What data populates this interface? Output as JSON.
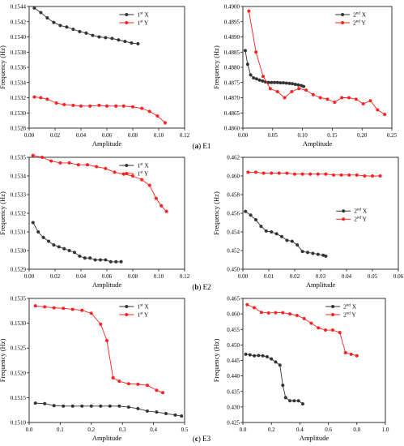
{
  "figure": {
    "captions": [
      {
        "letter": "a",
        "name": "E1"
      },
      {
        "letter": "b",
        "name": "E2"
      },
      {
        "letter": "c",
        "name": "E3"
      }
    ]
  },
  "chart_data": [
    {
      "id": "e1-1st",
      "type": "line",
      "xlabel": "Amplitude",
      "ylabel": "Frequency (Hz)",
      "xlim": [
        0,
        0.12
      ],
      "ylim": [
        0.1528,
        0.1544
      ],
      "xticks": [
        "0.00",
        "0.02",
        "0.04",
        "0.06",
        "0.08",
        "0.10",
        "0.12"
      ],
      "yticks": [
        "0.1528",
        "0.1530",
        "0.1532",
        "0.1534",
        "0.1536",
        "0.1538",
        "0.1540",
        "0.1542",
        "0.1544"
      ],
      "legend_position": "top-right",
      "series": [
        {
          "name": "1st X",
          "base": "1",
          "sup": "st",
          "axis": " X",
          "color": "#333333",
          "x": [
            0.004,
            0.009,
            0.014,
            0.019,
            0.024,
            0.029,
            0.034,
            0.039,
            0.044,
            0.049,
            0.054,
            0.059,
            0.064,
            0.069,
            0.074,
            0.079,
            0.084
          ],
          "y": [
            0.15438,
            0.15432,
            0.15425,
            0.15419,
            0.15415,
            0.15413,
            0.1541,
            0.15407,
            0.15405,
            0.15402,
            0.154,
            0.15399,
            0.15398,
            0.15396,
            0.15394,
            0.15392,
            0.15391
          ]
        },
        {
          "name": "1st Y",
          "base": "1",
          "sup": "st",
          "axis": " Y",
          "color": "#ff2020",
          "x": [
            0.004,
            0.009,
            0.014,
            0.021,
            0.027,
            0.034,
            0.04,
            0.047,
            0.054,
            0.06,
            0.067,
            0.073,
            0.08,
            0.087,
            0.093,
            0.099,
            0.105
          ],
          "y": [
            0.15321,
            0.1532,
            0.15318,
            0.15313,
            0.15311,
            0.1531,
            0.15309,
            0.15309,
            0.1531,
            0.15309,
            0.15309,
            0.15309,
            0.15308,
            0.15306,
            0.15302,
            0.15296,
            0.15287
          ]
        }
      ]
    },
    {
      "id": "e1-2nd",
      "type": "line",
      "xlabel": "Amplitude",
      "ylabel": "Frequency (Hz)",
      "xlim": [
        0,
        0.25
      ],
      "ylim": [
        0.486,
        0.49
      ],
      "xticks": [
        "0.00",
        "0.05",
        "0.10",
        "0.15",
        "0.20",
        "0.25"
      ],
      "yticks": [
        "0.4860",
        "0.4865",
        "0.4870",
        "0.4875",
        "0.4880",
        "0.4885",
        "0.4890",
        "0.4895",
        "0.4900"
      ],
      "legend_position": "top-right",
      "series": [
        {
          "name": "2nd X",
          "base": "2",
          "sup": "nd",
          "axis": " X",
          "color": "#333333",
          "x": [
            0.004,
            0.008,
            0.013,
            0.018,
            0.023,
            0.028,
            0.033,
            0.038,
            0.043,
            0.048,
            0.053,
            0.058,
            0.063,
            0.068,
            0.073,
            0.078,
            0.083,
            0.088,
            0.093,
            0.098,
            0.102
          ],
          "y": [
            0.48855,
            0.4881,
            0.48775,
            0.48765,
            0.48762,
            0.48758,
            0.48755,
            0.48752,
            0.4875,
            0.4875,
            0.4875,
            0.4875,
            0.48749,
            0.48749,
            0.48748,
            0.48747,
            0.48746,
            0.48744,
            0.48742,
            0.4874,
            0.48737
          ]
        },
        {
          "name": "2nd Y",
          "base": "2",
          "sup": "nd",
          "axis": " Y",
          "color": "#ff2020",
          "x": [
            0.01,
            0.022,
            0.034,
            0.046,
            0.058,
            0.07,
            0.082,
            0.094,
            0.106,
            0.118,
            0.13,
            0.142,
            0.154,
            0.166,
            0.178,
            0.19,
            0.202,
            0.214,
            0.226,
            0.238
          ],
          "y": [
            0.48985,
            0.4885,
            0.4877,
            0.4873,
            0.4872,
            0.487,
            0.4872,
            0.4873,
            0.48725,
            0.4871,
            0.487,
            0.48695,
            0.48685,
            0.487,
            0.487,
            0.48695,
            0.4868,
            0.4869,
            0.4866,
            0.48645
          ]
        }
      ]
    },
    {
      "id": "e2-1st",
      "type": "line",
      "xlabel": "Amplitude",
      "ylabel": "Frequency (Hz)",
      "xlim": [
        0,
        0.12
      ],
      "ylim": [
        0.1529,
        0.1535
      ],
      "xticks": [
        "0.00",
        "0.02",
        "0.04",
        "0.06",
        "0.08",
        "0.10",
        "0.12"
      ],
      "yticks": [
        "0.1529",
        "0.1530",
        "0.1531",
        "0.1532",
        "0.1533",
        "0.1534",
        "0.1535"
      ],
      "legend_position": "top-right",
      "series": [
        {
          "name": "1st X",
          "base": "1",
          "sup": "st",
          "axis": " X",
          "color": "#333333",
          "x": [
            0.003,
            0.007,
            0.011,
            0.015,
            0.019,
            0.023,
            0.027,
            0.031,
            0.035,
            0.039,
            0.043,
            0.047,
            0.051,
            0.055,
            0.059,
            0.063,
            0.067,
            0.071
          ],
          "y": [
            0.15315,
            0.1531,
            0.15307,
            0.15305,
            0.15303,
            0.15302,
            0.15301,
            0.153,
            0.15299,
            0.15297,
            0.15296,
            0.15296,
            0.15295,
            0.15295,
            0.15295,
            0.15294,
            0.15294,
            0.15294
          ]
        },
        {
          "name": "1st Y",
          "base": "1",
          "sup": "st",
          "axis": " Y",
          "color": "#ff2020",
          "x": [
            0.003,
            0.01,
            0.017,
            0.024,
            0.031,
            0.038,
            0.045,
            0.052,
            0.059,
            0.066,
            0.073,
            0.08,
            0.087,
            0.093,
            0.098,
            0.102,
            0.106
          ],
          "y": [
            0.15351,
            0.1535,
            0.15348,
            0.15347,
            0.15347,
            0.15346,
            0.15346,
            0.15345,
            0.15344,
            0.15342,
            0.15341,
            0.1534,
            0.15338,
            0.15335,
            0.15328,
            0.15324,
            0.15321
          ]
        }
      ]
    },
    {
      "id": "e2-2nd",
      "type": "line",
      "xlabel": "Amplitude",
      "ylabel": "Frequency (Hz)",
      "xlim": [
        0,
        0.06
      ],
      "ylim": [
        0.45,
        0.462
      ],
      "xticks": [
        "0.00",
        "0.01",
        "0.02",
        "0.03",
        "0.04",
        "0.05",
        "0.06"
      ],
      "yticks": [
        "0.450",
        "0.452",
        "0.454",
        "0.456",
        "0.458",
        "0.460",
        "0.462"
      ],
      "legend_position": "right",
      "series": [
        {
          "name": "2nd X",
          "base": "2",
          "sup": "nd",
          "axis": " X",
          "color": "#333333",
          "x": [
            0.001,
            0.003,
            0.005,
            0.007,
            0.009,
            0.011,
            0.013,
            0.015,
            0.017,
            0.019,
            0.021,
            0.023,
            0.025,
            0.027,
            0.029,
            0.031,
            0.032
          ],
          "y": [
            0.4562,
            0.4558,
            0.4553,
            0.4546,
            0.4541,
            0.454,
            0.4538,
            0.4535,
            0.4531,
            0.453,
            0.4526,
            0.4519,
            0.4518,
            0.4517,
            0.4516,
            0.4515,
            0.4514
          ]
        },
        {
          "name": "2nd Y",
          "base": "2",
          "sup": "nd",
          "axis": " Y",
          "color": "#ff2020",
          "x": [
            0.002,
            0.005,
            0.008,
            0.011,
            0.014,
            0.017,
            0.02,
            0.023,
            0.026,
            0.029,
            0.032,
            0.035,
            0.038,
            0.041,
            0.044,
            0.047,
            0.05,
            0.053
          ],
          "y": [
            0.4604,
            0.4604,
            0.4603,
            0.4603,
            0.4603,
            0.4603,
            0.4602,
            0.4602,
            0.4602,
            0.4602,
            0.4602,
            0.4601,
            0.4601,
            0.4601,
            0.4601,
            0.46,
            0.46,
            0.46
          ]
        }
      ]
    },
    {
      "id": "e3-1st",
      "type": "line",
      "xlabel": "Amplitude",
      "ylabel": "Frequency (Hz)",
      "xlim": [
        0,
        0.5
      ],
      "ylim": [
        0.151,
        0.1535
      ],
      "xticks": [
        "0.0",
        "0.1",
        "0.2",
        "0.3",
        "0.4",
        "0.5"
      ],
      "yticks": [
        "0.1510",
        "0.1515",
        "0.1520",
        "0.1525",
        "0.1530",
        "0.1535"
      ],
      "legend_position": "top-right",
      "series": [
        {
          "name": "1st X",
          "base": "1",
          "sup": "st",
          "axis": " X",
          "color": "#333333",
          "x": [
            0.02,
            0.05,
            0.08,
            0.11,
            0.14,
            0.17,
            0.2,
            0.23,
            0.26,
            0.29,
            0.32,
            0.35,
            0.38,
            0.41,
            0.44,
            0.47,
            0.49
          ],
          "y": [
            0.15139,
            0.15138,
            0.15134,
            0.15133,
            0.15133,
            0.15133,
            0.15133,
            0.15133,
            0.15133,
            0.15133,
            0.15131,
            0.15128,
            0.15123,
            0.15121,
            0.15118,
            0.15115,
            0.15113
          ]
        },
        {
          "name": "1st Y",
          "base": "1",
          "sup": "st",
          "axis": " Y",
          "color": "#ff2020",
          "x": [
            0.02,
            0.05,
            0.08,
            0.11,
            0.14,
            0.17,
            0.2,
            0.23,
            0.25,
            0.27,
            0.29,
            0.32,
            0.35,
            0.38,
            0.41,
            0.43
          ],
          "y": [
            0.15335,
            0.15333,
            0.15331,
            0.1533,
            0.15328,
            0.15326,
            0.1532,
            0.15298,
            0.15265,
            0.1519,
            0.15183,
            0.15178,
            0.15177,
            0.15175,
            0.15165,
            0.1516
          ]
        }
      ]
    },
    {
      "id": "e3-2nd",
      "type": "line",
      "xlabel": "Amplitude",
      "ylabel": "Frequency (Hz)",
      "xlim": [
        0,
        1.0
      ],
      "ylim": [
        0.425,
        0.465
      ],
      "xticks": [
        "0.0",
        "0.2",
        "0.4",
        "0.6",
        "0.8",
        "1.0"
      ],
      "yticks": [
        "0.425",
        "0.430",
        "0.435",
        "0.440",
        "0.445",
        "0.450",
        "0.455",
        "0.460",
        "0.465"
      ],
      "legend_position": "top-right",
      "series": [
        {
          "name": "2nd X",
          "base": "2",
          "sup": "nd",
          "axis": " X",
          "color": "#333333",
          "x": [
            0.02,
            0.05,
            0.08,
            0.11,
            0.14,
            0.17,
            0.2,
            0.23,
            0.26,
            0.28,
            0.3,
            0.33,
            0.36,
            0.39,
            0.42
          ],
          "y": [
            0.447,
            0.4468,
            0.4465,
            0.4466,
            0.4465,
            0.4462,
            0.4455,
            0.4445,
            0.4435,
            0.437,
            0.433,
            0.432,
            0.432,
            0.432,
            0.431
          ]
        },
        {
          "name": "2nd Y",
          "base": "2",
          "sup": "nd",
          "axis": " Y",
          "color": "#ff2020",
          "x": [
            0.03,
            0.08,
            0.13,
            0.18,
            0.23,
            0.28,
            0.33,
            0.38,
            0.43,
            0.48,
            0.53,
            0.58,
            0.63,
            0.68,
            0.72,
            0.76,
            0.8
          ],
          "y": [
            0.463,
            0.462,
            0.4605,
            0.4603,
            0.4604,
            0.4604,
            0.46,
            0.4595,
            0.4585,
            0.457,
            0.4555,
            0.4548,
            0.4548,
            0.454,
            0.4475,
            0.447,
            0.4465
          ]
        }
      ]
    }
  ]
}
